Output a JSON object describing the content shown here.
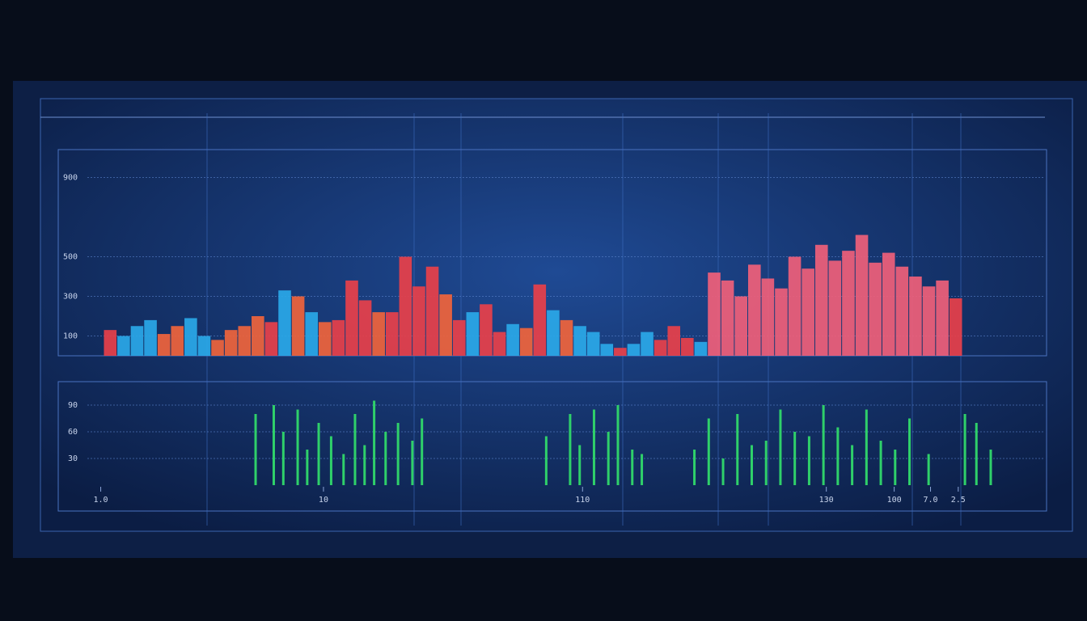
{
  "chart_data": [
    {
      "type": "bar",
      "values": [
        130,
        100,
        150,
        180,
        110,
        150,
        190,
        100,
        80,
        130,
        150,
        200,
        170,
        330,
        300,
        220,
        170,
        180,
        380,
        280,
        220,
        220,
        500,
        350,
        450,
        310,
        180,
        220,
        260,
        120,
        160,
        140,
        360,
        230,
        180,
        150,
        120,
        60,
        40,
        60,
        120,
        80,
        150,
        90,
        70,
        420,
        380,
        300,
        460,
        390,
        340,
        500,
        440,
        560,
        480,
        530,
        610,
        470,
        520,
        450,
        400,
        350,
        380,
        290
      ],
      "colors": [
        "#e8404a",
        "#2aa8e8",
        "#2aa8e8",
        "#2aa8e8",
        "#f0643c",
        "#f0643c",
        "#2aa8e8",
        "#2aa8e8",
        "#f0643c",
        "#f0643c",
        "#f0643c",
        "#f0643c",
        "#e8404a",
        "#2aa8e8",
        "#f0643c",
        "#2aa8e8",
        "#f0643c",
        "#e8404a",
        "#e8404a",
        "#e8404a",
        "#f0643c",
        "#e8404a",
        "#e8404a",
        "#e8404a",
        "#e8404a",
        "#f0643c",
        "#e8404a",
        "#2aa8e8",
        "#e8404a",
        "#e8404a",
        "#2aa8e8",
        "#f0643c",
        "#e8404a",
        "#2aa8e8",
        "#f0643c",
        "#2aa8e8",
        "#2aa8e8",
        "#2aa8e8",
        "#e8404a",
        "#2aa8e8",
        "#2aa8e8",
        "#e8404a",
        "#e8404a",
        "#e8404a",
        "#2aa8e8",
        "#f0607a",
        "#f0607a",
        "#f0607a",
        "#f0607a",
        "#f0607a",
        "#f0607a",
        "#f0607a",
        "#f0607a",
        "#f0607a",
        "#f0607a",
        "#f0607a",
        "#f0607a",
        "#f0607a",
        "#f0607a",
        "#f0607a",
        "#f0607a",
        "#f0607a",
        "#f0607a",
        "#e8404a"
      ],
      "ylim": [
        0,
        1000
      ],
      "yticks": [
        100,
        300,
        500,
        900
      ],
      "grid": true
    },
    {
      "type": "spike",
      "x": [
        17.6,
        19.5,
        20.5,
        22,
        23,
        24.2,
        25.5,
        26.8,
        28,
        29,
        30,
        31.2,
        32.5,
        34,
        35,
        48,
        50.5,
        51.5,
        53,
        54.5,
        55.5,
        57,
        58,
        63.5,
        65,
        66.5,
        68,
        69.5,
        71,
        72.5,
        74,
        75.5,
        77,
        78.5,
        80,
        81.5,
        83,
        84.5,
        86,
        88,
        91.8,
        93,
        94.5
      ],
      "values": [
        80,
        90,
        60,
        85,
        40,
        70,
        55,
        35,
        80,
        45,
        95,
        60,
        70,
        50,
        75,
        55,
        80,
        45,
        85,
        60,
        90,
        40,
        35,
        40,
        75,
        30,
        80,
        45,
        50,
        85,
        60,
        55,
        90,
        65,
        45,
        85,
        50,
        40,
        75,
        35,
        80,
        70,
        40
      ],
      "color": "#2fd06a",
      "xlim": [
        0,
        100
      ],
      "xticks": [
        {
          "value": 1.4,
          "label": "1.0"
        },
        {
          "value": 24.7,
          "label": "10"
        },
        {
          "value": 51.8,
          "label": "110"
        },
        {
          "value": 77.3,
          "label": "130"
        },
        {
          "value": 84.4,
          "label": "100"
        },
        {
          "value": 88.2,
          "label": "7.0"
        },
        {
          "value": 91.1,
          "label": "2.5"
        }
      ],
      "ylim": [
        0,
        100
      ],
      "yticks": [
        30,
        60,
        90
      ],
      "grid": true
    }
  ]
}
